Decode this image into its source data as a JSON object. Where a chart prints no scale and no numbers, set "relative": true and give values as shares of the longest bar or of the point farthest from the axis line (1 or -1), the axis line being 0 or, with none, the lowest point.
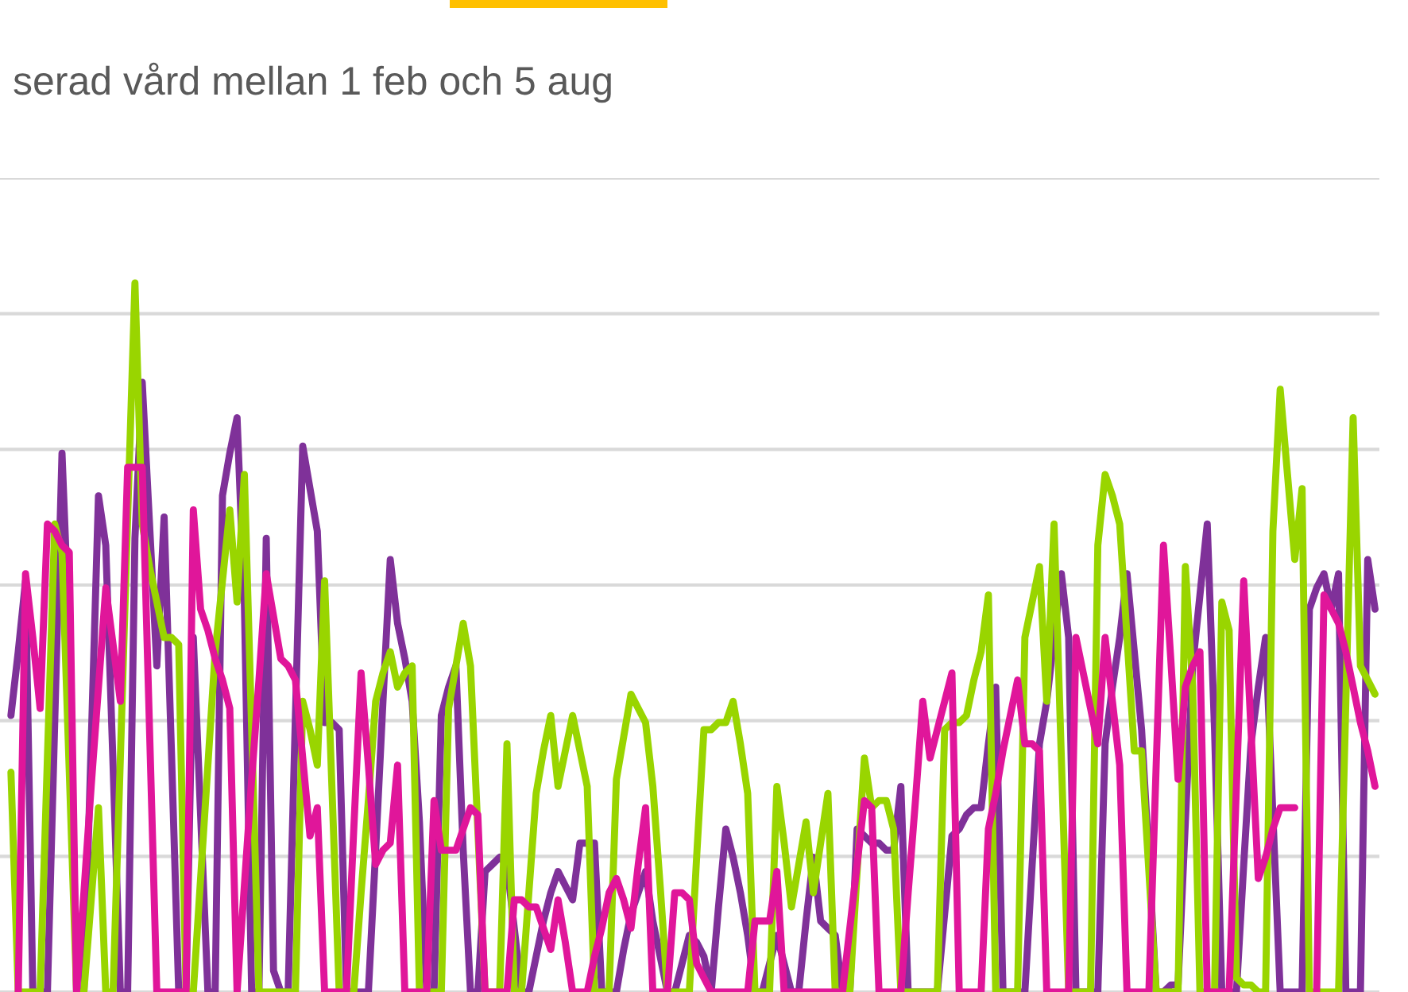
{
  "chart_data": {
    "type": "line",
    "title": "serad vård mellan 1 feb och 5 aug",
    "relative": true,
    "grid": "y",
    "tick_labels": false,
    "line_style": "solid",
    "categories": [
      null,
      null,
      null,
      null,
      null,
      null,
      null,
      null,
      null,
      null,
      null,
      null,
      null,
      null,
      null,
      null,
      null,
      null,
      null,
      null,
      null,
      null,
      null,
      null,
      null,
      null,
      null,
      null,
      null,
      null,
      null,
      null,
      null,
      null,
      null,
      null,
      null,
      null,
      null,
      null,
      null,
      null,
      null,
      null,
      null,
      null,
      null,
      null,
      null,
      null,
      null,
      null,
      null,
      null,
      null,
      null,
      null,
      null,
      null,
      null,
      null,
      null,
      null,
      null,
      null,
      null,
      null,
      null,
      null,
      null,
      null,
      null,
      null,
      null,
      null,
      null,
      null,
      null,
      null,
      null,
      null,
      null,
      null,
      null,
      null,
      null,
      null,
      null,
      null,
      null,
      null,
      null,
      null,
      null,
      null,
      null,
      null,
      null,
      null,
      null,
      null,
      null,
      null,
      null,
      null,
      null,
      null,
      null,
      null,
      null,
      null,
      null,
      null,
      null,
      null,
      null,
      null,
      null,
      null,
      null,
      null,
      null,
      null,
      null,
      null,
      null,
      null,
      null,
      null,
      null,
      null,
      null,
      null,
      null,
      null,
      null,
      null,
      null,
      null,
      null,
      null,
      null,
      null,
      null,
      null,
      null,
      null,
      null,
      null,
      null,
      null,
      null,
      null,
      null,
      null,
      null,
      null,
      null,
      null,
      null,
      null,
      null,
      null,
      null,
      null,
      null,
      null,
      null,
      null,
      null,
      null,
      null,
      null,
      null,
      null,
      null,
      null,
      null,
      null,
      null,
      null,
      null,
      null,
      null,
      null,
      null,
      null,
      null
    ],
    "series": [
      {
        "color": "#7f3199",
        "values": [
          0.39,
          0.48,
          0.58,
          0,
          0,
          0,
          0.38,
          0.76,
          0.5,
          0,
          0,
          0.35,
          0.7,
          0.63,
          0.32,
          0,
          0,
          0.64,
          0.86,
          0.66,
          0.46,
          0.67,
          0.34,
          0,
          0,
          0.5,
          0.25,
          0,
          0,
          0.7,
          0.76,
          0.81,
          0.55,
          0,
          0,
          0.64,
          0.03,
          0,
          0,
          0.39,
          0.77,
          0.71,
          0.65,
          0.38,
          0.38,
          0.37,
          0,
          0,
          0,
          0,
          0.2,
          0.41,
          0.61,
          0.52,
          0.47,
          0.41,
          0.24,
          0,
          0,
          0.39,
          0.43,
          0.46,
          0.2,
          0,
          0,
          0.17,
          0.18,
          0.19,
          0.18,
          0.09,
          0,
          0,
          0.05,
          0.1,
          0.14,
          0.17,
          0.15,
          0.13,
          0.21,
          0.21,
          0.21,
          0,
          0,
          0,
          0.06,
          0.11,
          0.14,
          0.17,
          0.1,
          0.05,
          0,
          0,
          0.04,
          0.08,
          0.07,
          0.05,
          0,
          0.12,
          0.23,
          0.19,
          0.14,
          0.08,
          0,
          0,
          0.04,
          0.08,
          0.04,
          0,
          0,
          0.1,
          0.19,
          0.1,
          0.09,
          0.08,
          0,
          0,
          0.23,
          0.22,
          0.21,
          0.21,
          0.2,
          0.2,
          0.29,
          0,
          0,
          0,
          0,
          0,
          0.11,
          0.22,
          0.23,
          0.25,
          0.26,
          0.26,
          0.35,
          0.43,
          0,
          0,
          0,
          0,
          0.18,
          0.35,
          0.41,
          0.5,
          0.59,
          0.5,
          0,
          0,
          0,
          0,
          0.35,
          0.43,
          0.5,
          0.59,
          0.48,
          0.37,
          0.19,
          0,
          0,
          0.01,
          0.01,
          0.24,
          0.46,
          0.56,
          0.66,
          0.37,
          0,
          0,
          0,
          0.18,
          0.35,
          0.43,
          0.5,
          0.25,
          0,
          0,
          0,
          0,
          0.54,
          0.57,
          0.59,
          0.54,
          0.59,
          0,
          0,
          0,
          0.61,
          0.54
        ]
      },
      {
        "color": "#99d500",
        "values": [
          0.31,
          0,
          0,
          0,
          0,
          0.33,
          0.66,
          0.62,
          0.31,
          0,
          0,
          0.13,
          0.26,
          0,
          0,
          0.33,
          0.67,
          1,
          0.66,
          0.6,
          0.55,
          0.5,
          0.5,
          0.49,
          0,
          0,
          0.16,
          0.32,
          0.48,
          0.58,
          0.68,
          0.55,
          0.73,
          0.37,
          0,
          0,
          0,
          0,
          0,
          0,
          0.41,
          0.37,
          0.32,
          0.58,
          0.29,
          0,
          0,
          0,
          0.14,
          0.27,
          0.41,
          0.45,
          0.48,
          0.43,
          0.45,
          0.46,
          0,
          0,
          0,
          0,
          0.4,
          0.46,
          0.52,
          0.46,
          0.23,
          0,
          0,
          0,
          0.35,
          0,
          0,
          0.14,
          0.28,
          0.34,
          0.39,
          0.29,
          0.34,
          0.39,
          0.34,
          0.29,
          0,
          0,
          0,
          0.3,
          0.36,
          0.42,
          0.4,
          0.38,
          0.29,
          0.15,
          0,
          0,
          0,
          0,
          0.19,
          0.37,
          0.37,
          0.38,
          0.38,
          0.41,
          0.35,
          0.28,
          0,
          0,
          0,
          0.29,
          0.21,
          0.12,
          0.18,
          0.24,
          0.14,
          0.21,
          0.28,
          0,
          0,
          0,
          0.17,
          0.33,
          0.26,
          0.27,
          0.27,
          0.23,
          0,
          0,
          0,
          0,
          0,
          0,
          0.37,
          0.38,
          0.38,
          0.39,
          0.44,
          0.48,
          0.56,
          0,
          0,
          0,
          0,
          0.5,
          0.55,
          0.6,
          0.41,
          0.66,
          0.33,
          0,
          0,
          0,
          0,
          0.63,
          0.73,
          0.7,
          0.66,
          0.5,
          0.34,
          0.34,
          0.17,
          0,
          0,
          0,
          0,
          0.6,
          0.43,
          0,
          0,
          0,
          0.55,
          0.51,
          0.02,
          0.01,
          0.01,
          0,
          0,
          0.65,
          0.85,
          0.73,
          0.61,
          0.71,
          0,
          0,
          0,
          0,
          0,
          0.41,
          0.81,
          0.46,
          0.44,
          0.42
        ]
      },
      {
        "color": "#e0169a",
        "values": [
          null,
          0,
          0.59,
          0.5,
          0.4,
          0.66,
          0.65,
          0.63,
          0.62,
          0,
          0.14,
          0.29,
          0.43,
          0.57,
          0.49,
          0.41,
          0.74,
          0.74,
          0.74,
          0.37,
          0,
          0,
          0,
          0,
          0,
          0.68,
          0.54,
          0.51,
          0.47,
          0.44,
          0.4,
          0,
          0.15,
          0.3,
          0.44,
          0.59,
          0.53,
          0.47,
          0.46,
          0.44,
          0.33,
          0.22,
          0.26,
          0,
          0,
          0,
          0,
          0.23,
          0.45,
          0.32,
          0.18,
          0.2,
          0.21,
          0.32,
          0,
          0,
          0,
          0,
          0.27,
          0.2,
          0.2,
          0.2,
          0.23,
          0.26,
          0.25,
          0,
          0,
          0,
          0,
          0.13,
          0.13,
          0.12,
          0.12,
          0.09,
          0.06,
          0.13,
          0.07,
          0,
          0,
          0,
          0.05,
          0.09,
          0.14,
          0.16,
          0.13,
          0.09,
          0.18,
          0.26,
          0,
          0,
          0,
          0.14,
          0.14,
          0.13,
          0.04,
          0.02,
          0,
          0,
          0,
          0,
          0,
          0,
          0.1,
          0.1,
          0.1,
          0.17,
          0,
          0,
          0,
          0,
          0,
          0,
          0,
          0,
          0,
          0.09,
          0.18,
          0.27,
          0.26,
          0,
          0,
          0,
          0,
          0.14,
          0.27,
          0.41,
          0.33,
          0.37,
          0.41,
          0.45,
          0,
          0,
          0,
          0,
          0.23,
          0.28,
          0.34,
          0.39,
          0.44,
          0.35,
          0.35,
          0.34,
          0,
          0,
          0,
          0,
          0.5,
          0.45,
          0.4,
          0.35,
          0.5,
          0.41,
          0.32,
          0,
          0,
          0,
          0,
          0.32,
          0.63,
          0.47,
          0.3,
          0.43,
          0.46,
          0.48,
          0,
          0,
          0,
          0,
          0.29,
          0.58,
          0.37,
          0.16,
          0.19,
          0.23,
          0.26,
          0.26,
          0.26,
          null,
          null,
          0,
          0.56,
          0.54,
          0.52,
          0.48,
          0.43,
          0.38,
          0.34,
          0.29
        ]
      }
    ]
  }
}
